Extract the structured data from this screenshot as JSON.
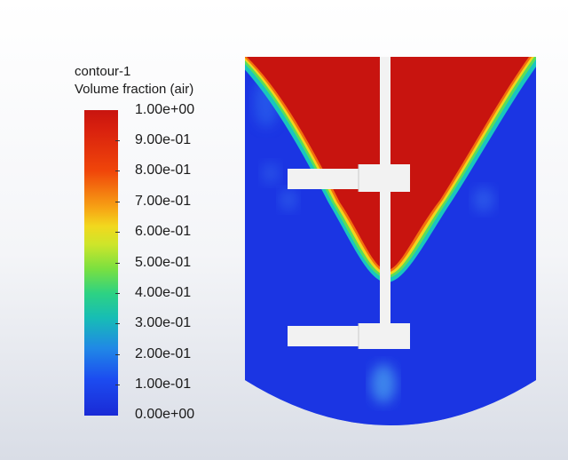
{
  "legend": {
    "name": "contour-1",
    "quantity": "Volume fraction (air)",
    "ticks": [
      "1.00e+00",
      "9.00e-01",
      "8.00e-01",
      "7.00e-01",
      "6.00e-01",
      "5.00e-01",
      "4.00e-01",
      "3.00e-01",
      "2.00e-01",
      "1.00e-01",
      "0.00e+00"
    ]
  },
  "colors": {
    "air": "#c8140f",
    "liquid": "#1a2ad6",
    "impeller": "#f2f2f2"
  }
}
